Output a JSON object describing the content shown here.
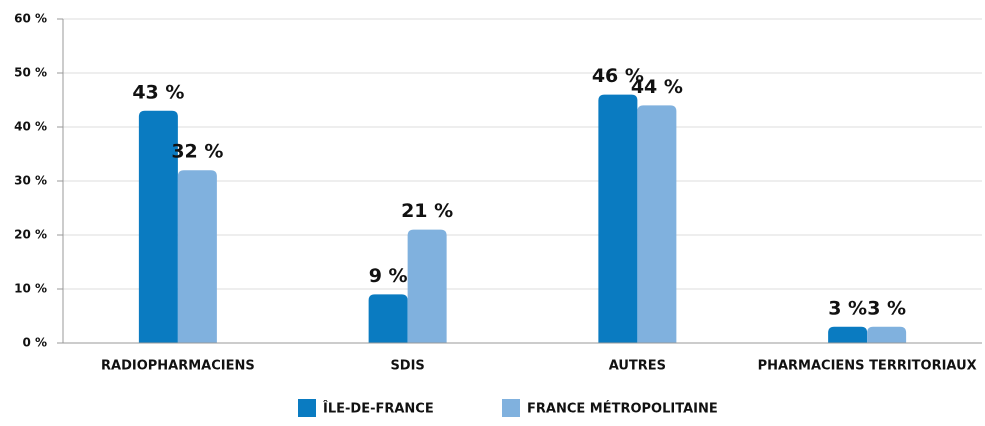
{
  "chart_data": {
    "type": "bar",
    "categories": [
      "RADIOPHARMACIENS",
      "SDIS",
      "AUTRES",
      "PHARMACIENS TERRITORIAUX"
    ],
    "series": [
      {
        "name": "ÎLE-DE-FRANCE",
        "color": "#0a7bc1",
        "values": [
          43,
          9,
          46,
          3
        ],
        "value_labels": [
          "43 %",
          "9 %",
          "46 %",
          "3 %"
        ]
      },
      {
        "name": "FRANCE MÉTROPOLITAINE",
        "color": "#80b1de",
        "values": [
          32,
          21,
          44,
          3
        ],
        "value_labels": [
          "32 %",
          "21 %",
          "44 %",
          "3 %"
        ]
      }
    ],
    "ylim": [
      0,
      60
    ],
    "yticks": [
      {
        "value": 0,
        "label": "0 %"
      },
      {
        "value": 10,
        "label": "10 %"
      },
      {
        "value": 20,
        "label": "20 %"
      },
      {
        "value": 30,
        "label": "30 %"
      },
      {
        "value": 40,
        "label": "40 %"
      },
      {
        "value": 50,
        "label": "50 %"
      },
      {
        "value": 60,
        "label": "60 %"
      }
    ],
    "grid": true,
    "legend": "bottom"
  }
}
